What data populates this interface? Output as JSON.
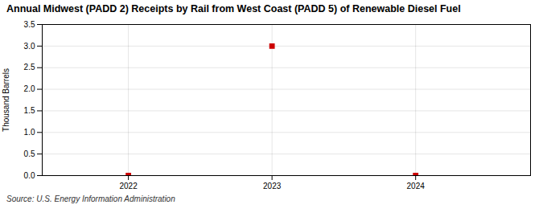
{
  "chart_data": {
    "type": "scatter",
    "title": "Annual Midwest (PADD 2) Receipts by Rail from West Coast (PADD 5) of Renewable Diesel Fuel",
    "ylabel": "Thousand Barrels",
    "source": "Source: U.S. Energy Information Administration",
    "x": [
      2022,
      2023,
      2024
    ],
    "values": [
      0.0,
      3.0,
      0.0
    ],
    "color": "#cc0000",
    "marker": "square",
    "xlim": [
      2021.4,
      2024.8
    ],
    "xticks": [
      2022,
      2023,
      2024
    ],
    "ylim": [
      0.0,
      3.5
    ],
    "yticks": [
      {
        "value": 0.0,
        "label": "0.0"
      },
      0.5,
      {
        "value": 1.0,
        "label": "1.0"
      },
      1.5,
      {
        "value": 2.0,
        "label": "2.0"
      },
      2.5,
      {
        "value": 3.0,
        "label": "3.0"
      },
      3.5
    ],
    "grid": true
  }
}
